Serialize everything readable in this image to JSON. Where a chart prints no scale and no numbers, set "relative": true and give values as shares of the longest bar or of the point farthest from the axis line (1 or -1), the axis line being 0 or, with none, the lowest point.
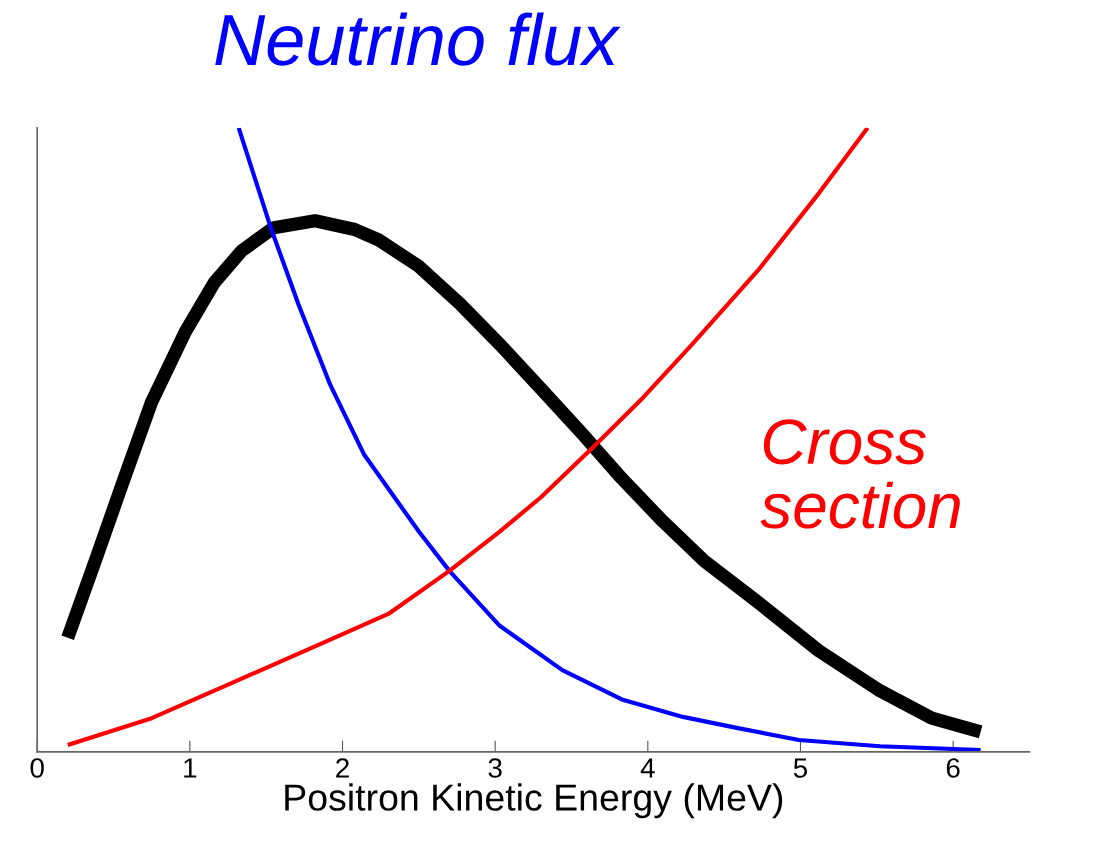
{
  "chart_data": {
    "type": "line",
    "relative": true,
    "xlabel": "Positron Kinetic Energy (MeV)",
    "xlim": [
      0,
      6.5
    ],
    "xticks": [
      0,
      1,
      2,
      3,
      4,
      5,
      6
    ],
    "series": [
      {
        "color": "#000000",
        "x": [
          0.2,
          0.38,
          0.57,
          0.75,
          0.97,
          1.16,
          1.34,
          1.55,
          1.82,
          2.08,
          2.24,
          2.5,
          2.77,
          3.03,
          3.3,
          3.57,
          3.83,
          4.1,
          4.37,
          4.72,
          5.12,
          5.52,
          5.86,
          6.18
        ],
        "values": [
          0.183,
          0.306,
          0.438,
          0.561,
          0.673,
          0.752,
          0.803,
          0.84,
          0.851,
          0.837,
          0.82,
          0.778,
          0.718,
          0.653,
          0.582,
          0.51,
          0.438,
          0.369,
          0.306,
          0.24,
          0.162,
          0.098,
          0.054,
          0.032
        ]
      },
      {
        "name": "Neutrino flux",
        "color": "#0000ff",
        "x": [
          1.32,
          1.53,
          1.71,
          1.92,
          2.14,
          2.5,
          2.7,
          3.03,
          3.44,
          3.83,
          4.23,
          4.59,
          4.99,
          5.52,
          6.18
        ],
        "values": [
          1.0,
          0.84,
          0.718,
          0.588,
          0.477,
          0.353,
          0.29,
          0.202,
          0.131,
          0.084,
          0.056,
          0.038,
          0.019,
          0.009,
          0.003
        ]
      },
      {
        "name": "Cross section",
        "color": "#ff0000",
        "x": [
          0.2,
          0.75,
          1.28,
          1.82,
          2.3,
          2.7,
          3.03,
          3.3,
          3.65,
          3.97,
          4.29,
          4.72,
          5.12,
          5.44
        ],
        "values": [
          0.011,
          0.054,
          0.111,
          0.169,
          0.221,
          0.29,
          0.353,
          0.408,
          0.49,
          0.568,
          0.653,
          0.771,
          0.895,
          1.0
        ]
      }
    ]
  }
}
